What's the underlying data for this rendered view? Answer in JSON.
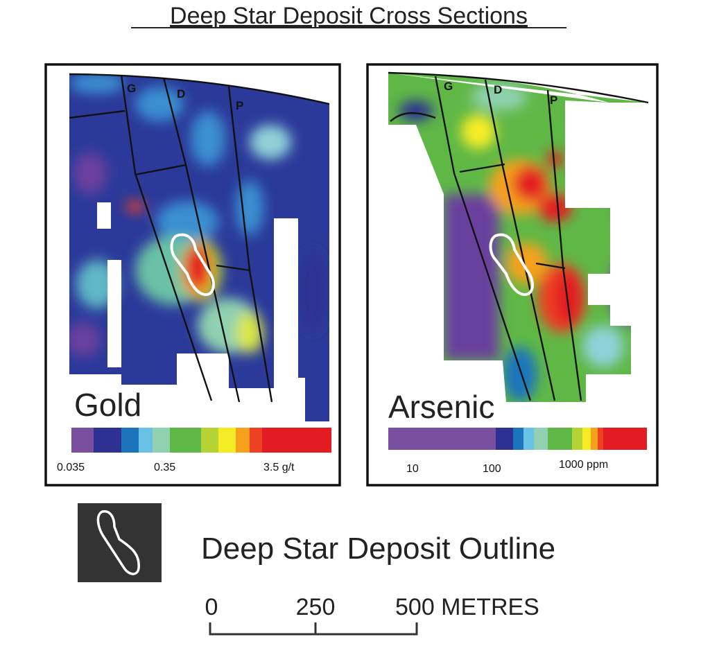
{
  "title": "Deep Star Deposit Cross Sections",
  "panels": [
    {
      "label": "Gold",
      "faults": [
        "G",
        "D",
        "P"
      ],
      "scale_labels": [
        "0.035",
        "0.35",
        "3.5 g/t"
      ]
    },
    {
      "label": "Arsenic",
      "faults": [
        "G",
        "D",
        "P"
      ],
      "scale_labels": [
        "10",
        "100",
        "1000 ppm"
      ]
    }
  ],
  "legend": {
    "label": "Deep Star Deposit Outline"
  },
  "scale_bar": {
    "labels": [
      "0",
      "250",
      "500 METRES"
    ]
  }
}
